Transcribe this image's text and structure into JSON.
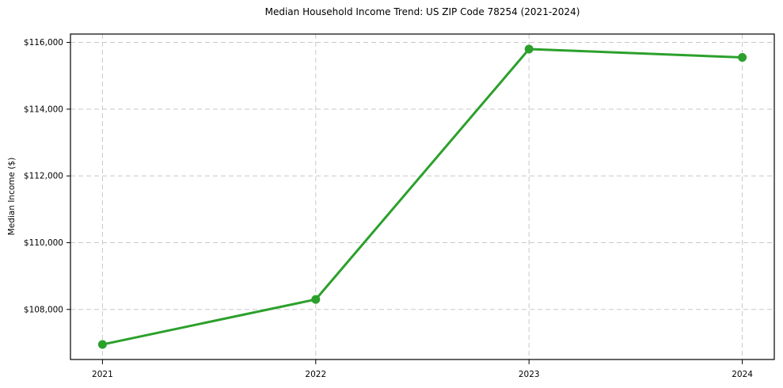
{
  "chart_data": {
    "type": "line",
    "title": "Median Household Income Trend: US ZIP Code 78254 (2021-2024)",
    "xlabel": "",
    "ylabel": "Median Income ($)",
    "categories": [
      "2021",
      "2022",
      "2023",
      "2024"
    ],
    "x": [
      2021,
      2022,
      2023,
      2024
    ],
    "series": [
      {
        "name": "Median Household Income",
        "values": [
          106950,
          108300,
          115800,
          115550
        ]
      }
    ],
    "yticks": [
      108000,
      110000,
      112000,
      114000,
      116000
    ],
    "ytick_labels": [
      "$108,000",
      "$110,000",
      "$112,000",
      "$114,000",
      "$116,000"
    ],
    "ylim": [
      106500,
      116250
    ],
    "xlim": [
      2020.85,
      2024.15
    ],
    "grid": true,
    "grid_style": "dashed",
    "legend_position": "none",
    "line_color": "#2ca02c",
    "marker": "circle",
    "grid_color": "#c8c8c8",
    "axis_color": "#000000",
    "background_color": "#ffffff"
  }
}
